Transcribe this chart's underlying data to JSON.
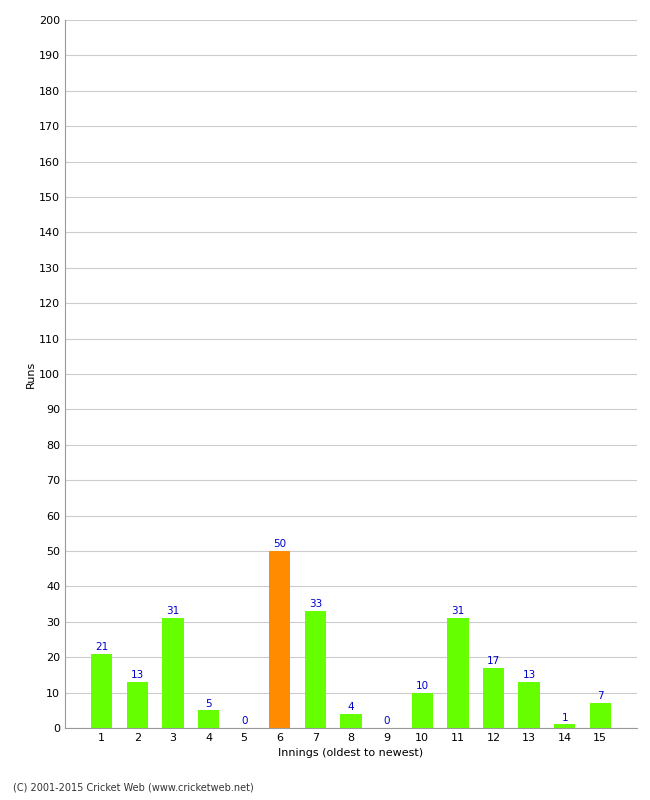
{
  "categories": [
    1,
    2,
    3,
    4,
    5,
    6,
    7,
    8,
    9,
    10,
    11,
    12,
    13,
    14,
    15
  ],
  "values": [
    21,
    13,
    31,
    5,
    0,
    50,
    33,
    4,
    0,
    10,
    31,
    17,
    13,
    1,
    7
  ],
  "bar_colors": [
    "#66ff00",
    "#66ff00",
    "#66ff00",
    "#66ff00",
    "#66ff00",
    "#ff8c00",
    "#66ff00",
    "#66ff00",
    "#66ff00",
    "#66ff00",
    "#66ff00",
    "#66ff00",
    "#66ff00",
    "#66ff00",
    "#66ff00"
  ],
  "ylabel": "Runs",
  "xlabel": "Innings (oldest to newest)",
  "ylim": [
    0,
    200
  ],
  "yticks": [
    0,
    10,
    20,
    30,
    40,
    50,
    60,
    70,
    80,
    90,
    100,
    110,
    120,
    130,
    140,
    150,
    160,
    170,
    180,
    190,
    200
  ],
  "label_color": "#0000cc",
  "label_fontsize": 7.5,
  "axis_tick_fontsize": 8,
  "axis_label_fontsize": 8,
  "footer_text": "(C) 2001-2015 Cricket Web (www.cricketweb.net)",
  "background_color": "#ffffff",
  "grid_color": "#cccccc",
  "bar_width": 0.6
}
